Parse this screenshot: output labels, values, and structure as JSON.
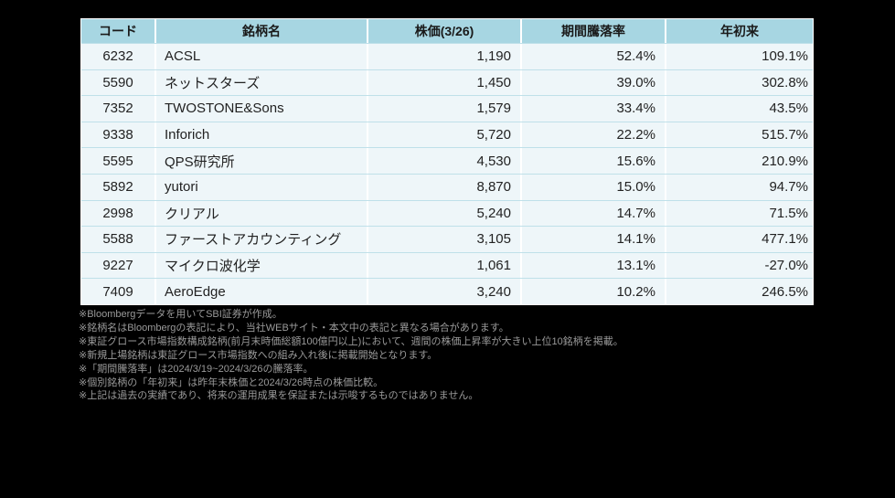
{
  "chart_data": {
    "type": "table",
    "title": "",
    "columns": [
      "コード",
      "銘柄名",
      "株価(3/26)",
      "期間騰落率",
      "年初来"
    ],
    "rows": [
      [
        "6232",
        "ACSL",
        "1,190",
        "52.4%",
        "109.1%"
      ],
      [
        "5590",
        "ネットスターズ",
        "1,450",
        "39.0%",
        "302.8%"
      ],
      [
        "7352",
        "TWOSTONE&Sons",
        "1,579",
        "33.4%",
        "43.5%"
      ],
      [
        "9338",
        "Inforich",
        "5,720",
        "22.2%",
        "515.7%"
      ],
      [
        "5595",
        "QPS研究所",
        "4,530",
        "15.6%",
        "210.9%"
      ],
      [
        "5892",
        "yutori",
        "8,870",
        "15.0%",
        "94.7%"
      ],
      [
        "2998",
        "クリアル",
        "5,240",
        "14.7%",
        "71.5%"
      ],
      [
        "5588",
        "ファーストアカウンティング",
        "3,105",
        "14.1%",
        "477.1%"
      ],
      [
        "9227",
        "マイクロ波化学",
        "1,061",
        "13.1%",
        "-27.0%"
      ],
      [
        "7409",
        "AeroEdge",
        "3,240",
        "10.2%",
        "246.5%"
      ]
    ]
  },
  "footnotes": [
    "※Bloombergデータを用いてSBI証券が作成。",
    "※銘柄名はBloombergの表記により、当社WEBサイト・本文中の表記と異なる場合があります。",
    "※東証グロース市場指数構成銘柄(前月末時価総額100億円以上)において、週間の株価上昇率が大きい上位10銘柄を掲載。",
    "※新規上場銘柄は東証グロース市場指数への組み入れ後に掲載開始となります。",
    "※「期間騰落率」は2024/3/19~2024/3/26の騰落率。",
    "※個別銘柄の「年初来」は昨年末株価と2024/3/26時点の株価比較。",
    "※上記は過去の実績であり、将来の運用成果を保証または示唆するものではありません。"
  ],
  "colors": {
    "page_background": "#000000",
    "header_background": "#a7d6e2",
    "row_background": "#eef6f9",
    "row_separator": "#bfe0e9",
    "column_separator": "#ffffff",
    "table_text": "#222222",
    "footnote_text": "#9a9a9a"
  }
}
